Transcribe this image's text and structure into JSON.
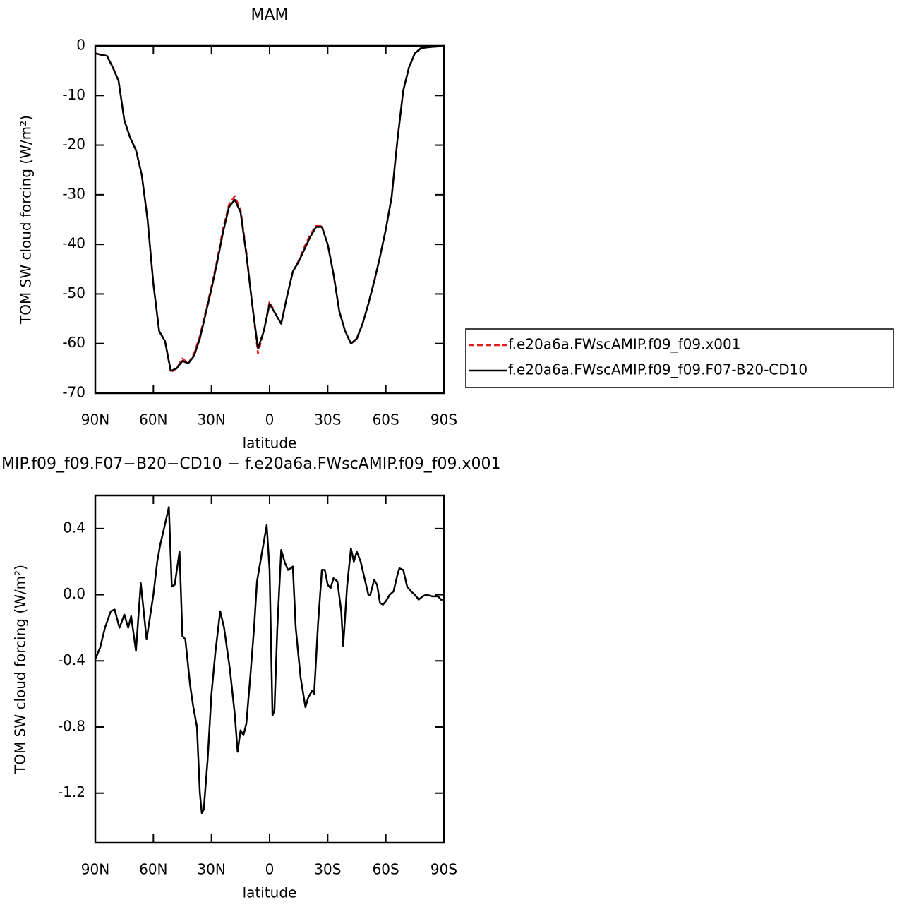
{
  "chart_data": [
    {
      "type": "line",
      "title": "MAM",
      "xlabel": "latitude",
      "ylabel": "TOM SW cloud forcing (W/m²)",
      "xlim": [
        90,
        -90
      ],
      "ylim": [
        -70,
        0
      ],
      "xticks": [
        {
          "value": 90,
          "label": "90N"
        },
        {
          "value": 60,
          "label": "60N"
        },
        {
          "value": 30,
          "label": "30N"
        },
        0,
        {
          "value": -30,
          "label": "30S"
        },
        {
          "value": -60,
          "label": "60S"
        },
        {
          "value": -90,
          "label": "90S"
        }
      ],
      "yticks": [
        0,
        -10,
        -20,
        -30,
        -40,
        -50,
        -60,
        -70
      ],
      "x": [
        90,
        87,
        84,
        81,
        78,
        75,
        72,
        69,
        66,
        63,
        60,
        57,
        54,
        51,
        48,
        45,
        42,
        39,
        36,
        33,
        30,
        27,
        24,
        21,
        18,
        15,
        12,
        9,
        6,
        3,
        0,
        -3,
        -6,
        -9,
        -12,
        -15,
        -18,
        -21,
        -24,
        -27,
        -30,
        -33,
        -36,
        -39,
        -42,
        -45,
        -48,
        -51,
        -54,
        -57,
        -60,
        -63,
        -66,
        -69,
        -72,
        -75,
        -78,
        -81,
        -84,
        -87,
        -90
      ],
      "series": [
        {
          "name": "f.e20a6a.FWscAMIP.f09_f09.x001",
          "color": "#e41a1c",
          "line_style": "dashed",
          "values": [
            -1.5,
            -1.8,
            -2.0,
            -4.3,
            -7,
            -15,
            -18.5,
            -21,
            -26,
            -35,
            -48,
            -57.5,
            -59.5,
            -65.8,
            -65,
            -63,
            -64,
            -62,
            -58.5,
            -53.5,
            -48.5,
            -43,
            -36.8,
            -32,
            -30.3,
            -33,
            -41.5,
            -52,
            -62,
            -57.5,
            -51.5,
            -54,
            -56,
            -50.5,
            -45.5,
            -43.3,
            -40.5,
            -38,
            -36.3,
            -36.3,
            -40,
            -46,
            -53.5,
            -57.5,
            -60,
            -59.2,
            -56,
            -52,
            -47.5,
            -42.5,
            -37,
            -30.5,
            -19,
            -9,
            -4.3,
            -1.5,
            -0.5,
            -0.3,
            -0.2,
            -0.1,
            0
          ]
        },
        {
          "name": "f.e20a6a.FWscAMIP.f09_f09.F07-B20-CD10",
          "color": "#000000",
          "line_style": "solid",
          "values": [
            -1.5,
            -1.8,
            -2.0,
            -4.3,
            -7,
            -15,
            -18.5,
            -21,
            -26,
            -35,
            -48,
            -57.5,
            -59.5,
            -65.5,
            -65,
            -63.5,
            -64,
            -62.5,
            -59,
            -54,
            -49,
            -43.5,
            -37.5,
            -32.5,
            -31,
            -33.5,
            -42,
            -52,
            -61,
            -57.5,
            -52,
            -54,
            -56,
            -50.5,
            -45.5,
            -43.5,
            -41,
            -38.5,
            -36.5,
            -36.5,
            -40,
            -46,
            -53.5,
            -57.5,
            -60,
            -59,
            -56,
            -52,
            -47.5,
            -42.5,
            -37,
            -30.5,
            -19,
            -9,
            -4.3,
            -1.5,
            -0.5,
            -0.3,
            -0.2,
            -0.1,
            0
          ]
        }
      ]
    },
    {
      "type": "line",
      "title": "MIP.f09_f09.F07−B20−CD10 − f.e20a6a.FWscAMIP.f09_f09.x001",
      "xlabel": "latitude",
      "ylabel": "TOM SW cloud forcing (W/m²)",
      "xlim": [
        90,
        -90
      ],
      "ylim": [
        -1.5,
        0.6
      ],
      "xticks": [
        {
          "value": 90,
          "label": "90N"
        },
        {
          "value": 60,
          "label": "60N"
        },
        {
          "value": 30,
          "label": "30N"
        },
        0,
        {
          "value": -30,
          "label": "30S"
        },
        {
          "value": -60,
          "label": "60S"
        },
        {
          "value": -90,
          "label": "90S"
        }
      ],
      "yticks": [
        0.4,
        {
          "value": 0,
          "label": "0.0"
        },
        -0.4,
        -0.8,
        -1.2
      ],
      "x": [
        90,
        87.5,
        85,
        82,
        80,
        77.5,
        75,
        73,
        71.5,
        69,
        66.5,
        63.5,
        60,
        58,
        56.5,
        54.5,
        52,
        50.5,
        49,
        46.5,
        45,
        43.5,
        41,
        39.5,
        37.5,
        36,
        35,
        34,
        32,
        30,
        28,
        25.5,
        23.5,
        20.5,
        18,
        16.5,
        15,
        13.5,
        12,
        10,
        8,
        6.5,
        4,
        1.5,
        0,
        -1.5,
        -2.5,
        -4,
        -6,
        -8,
        -9.5,
        -11,
        -12,
        -13.5,
        -16,
        -18.5,
        -20,
        -22,
        -23,
        -25,
        -27,
        -28.5,
        -30,
        -31.5,
        -33,
        -35,
        -37,
        -38,
        -40,
        -42,
        -43.5,
        -45,
        -47,
        -49,
        -51,
        -52,
        -54,
        -55.5,
        -57,
        -58.5,
        -60,
        -62,
        -64,
        -66,
        -67,
        -69,
        -71,
        -73,
        -75,
        -77,
        -79,
        -81,
        -84,
        -87,
        -88.5,
        -90
      ],
      "series": [
        {
          "color": "#000000",
          "line_style": "solid",
          "values": [
            -0.39,
            -0.32,
            -0.2,
            -0.1,
            -0.09,
            -0.2,
            -0.12,
            -0.2,
            -0.13,
            -0.34,
            0.07,
            -0.27,
            0.0,
            0.2,
            0.3,
            0.4,
            0.53,
            0.05,
            0.06,
            0.26,
            -0.25,
            -0.27,
            -0.55,
            -0.67,
            -0.8,
            -1.2,
            -1.32,
            -1.3,
            -1.0,
            -0.6,
            -0.35,
            -0.1,
            -0.2,
            -0.45,
            -0.72,
            -0.95,
            -0.82,
            -0.85,
            -0.78,
            -0.5,
            -0.2,
            0.08,
            0.25,
            0.42,
            0.15,
            -0.73,
            -0.7,
            -0.2,
            0.27,
            0.19,
            0.15,
            0.16,
            0.17,
            -0.2,
            -0.5,
            -0.68,
            -0.62,
            -0.58,
            -0.6,
            -0.18,
            0.15,
            0.15,
            0.06,
            0.04,
            0.1,
            0.08,
            -0.1,
            -0.31,
            0.05,
            0.28,
            0.2,
            0.26,
            0.2,
            0.1,
            0.0,
            0.0,
            0.09,
            0.06,
            -0.05,
            -0.06,
            -0.04,
            0.0,
            0.02,
            0.12,
            0.16,
            0.15,
            0.05,
            0.02,
            0.0,
            -0.03,
            -0.01,
            0.0,
            -0.01,
            -0.01,
            -0.03,
            -0.03
          ]
        }
      ]
    }
  ]
}
